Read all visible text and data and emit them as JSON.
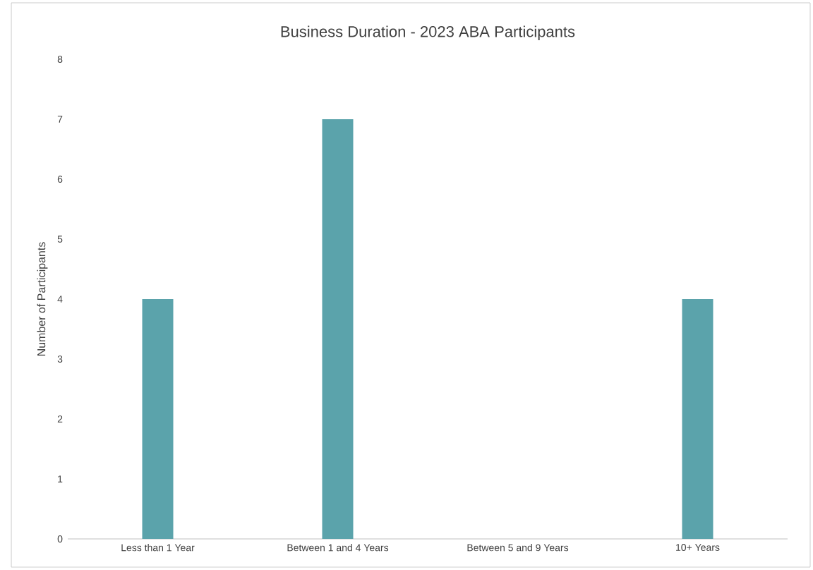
{
  "chart_data": {
    "type": "bar",
    "title": "Business Duration - 2023 ABA Participants",
    "ylabel": "Number of Participants",
    "categories": [
      "Less than 1 Year",
      "Between 1 and 4 Years",
      "Between 5 and 9 Years",
      "10+ Years"
    ],
    "values": [
      4,
      7,
      0,
      4
    ],
    "color": "#5ba3ab",
    "ylim": [
      0,
      8
    ],
    "yticks": [
      0,
      1,
      2,
      3,
      4,
      5,
      6,
      7,
      8
    ]
  }
}
